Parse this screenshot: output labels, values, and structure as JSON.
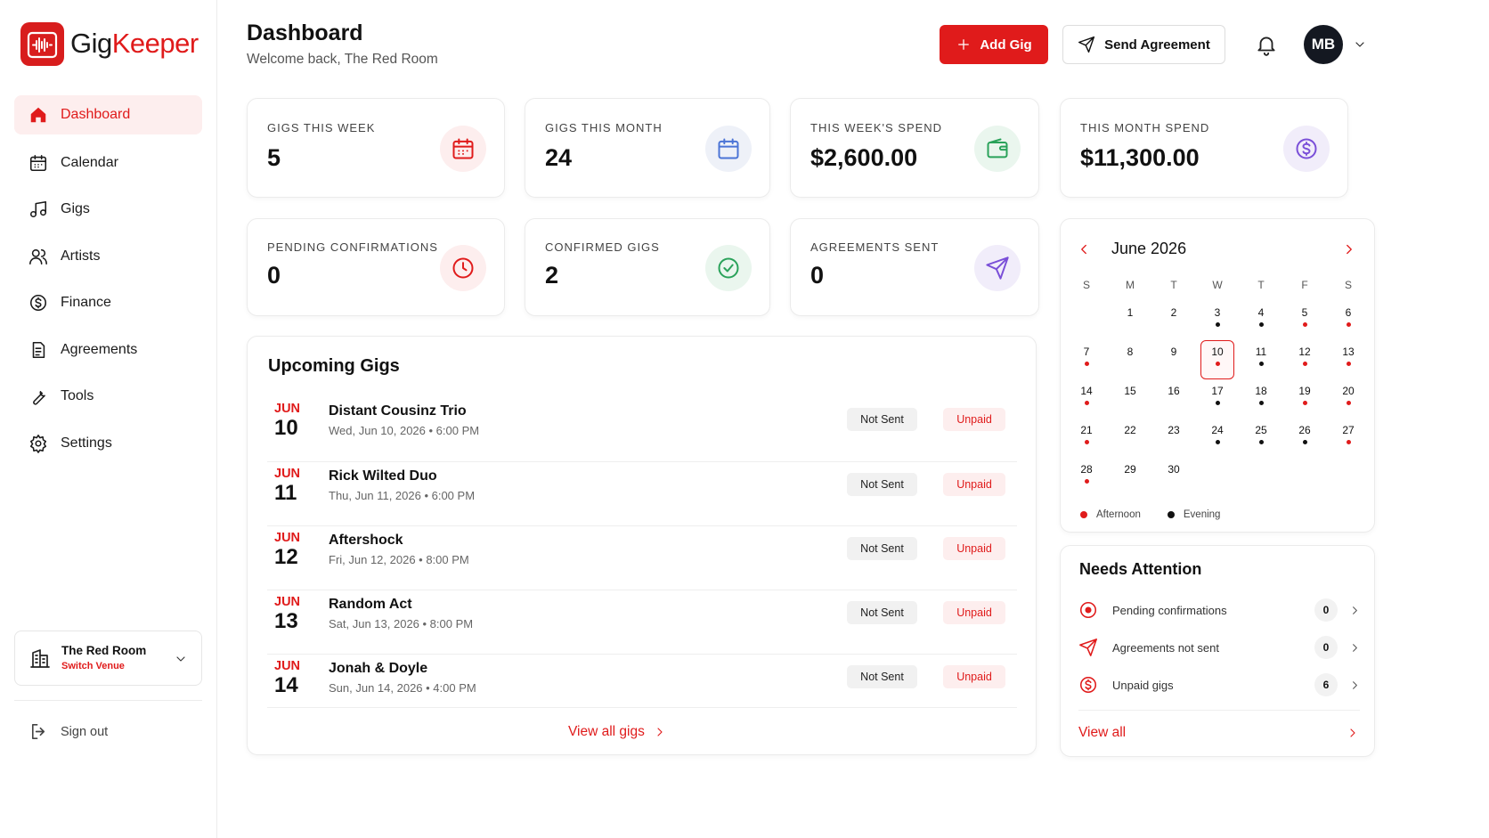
{
  "brand": {
    "name_a": "Gig",
    "name_b": "Keeper"
  },
  "nav": [
    "Dashboard",
    "Calendar",
    "Gigs",
    "Artists",
    "Finance",
    "Agreements",
    "Tools",
    "Settings"
  ],
  "venue": {
    "name": "The Red Room",
    "action": "Switch Venue"
  },
  "sign_out": "Sign out",
  "header": {
    "title": "Dashboard",
    "subtitle": "Welcome back, The Red Room",
    "add_button": "Add Gig",
    "send_button": "Send Agreement",
    "avatar": "MB"
  },
  "stats": [
    {
      "label": "GIGS THIS WEEK",
      "value": 5
    },
    {
      "label": "GIGS THIS MONTH",
      "value": 24
    },
    {
      "label": "THIS WEEK'S SPEND",
      "value": "$2,600.00"
    },
    {
      "label": "THIS MONTH SPEND",
      "value": "$11,300.00"
    },
    {
      "label": "PENDING CONFIRMATIONS",
      "value": 0
    },
    {
      "label": "CONFIRMED GIGS",
      "value": 2
    },
    {
      "label": "AGREEMENTS SENT",
      "value": 0
    }
  ],
  "upcoming": {
    "title": "Upcoming Gigs",
    "rows": [
      {
        "month": "JUN",
        "day": 10,
        "name": "Distant Cousinz Trio",
        "when": "Wed, Jun 10, 2026 • 6:00 PM",
        "agreement": "Not Sent",
        "payment": "Unpaid"
      },
      {
        "month": "JUN",
        "day": 11,
        "name": "Rick Wilted Duo",
        "when": "Thu, Jun 11, 2026 • 6:00 PM",
        "agreement": "Not Sent",
        "payment": "Unpaid"
      },
      {
        "month": "JUN",
        "day": 12,
        "name": "Aftershock",
        "when": "Fri, Jun 12, 2026 • 8:00 PM",
        "agreement": "Not Sent",
        "payment": "Unpaid"
      },
      {
        "month": "JUN",
        "day": 13,
        "name": "Random Act",
        "when": "Sat, Jun 13, 2026 • 8:00 PM",
        "agreement": "Not Sent",
        "payment": "Unpaid"
      },
      {
        "month": "JUN",
        "day": 14,
        "name": "Jonah & Doyle",
        "when": "Sun, Jun 14, 2026 • 4:00 PM",
        "agreement": "Not Sent",
        "payment": "Unpaid"
      }
    ],
    "footer": "View all gigs"
  },
  "calendar": {
    "title": "June 2026",
    "weekdays": [
      "S",
      "M",
      "T",
      "W",
      "T",
      "F",
      "S"
    ],
    "days": [
      null,
      1,
      2,
      3,
      4,
      5,
      6,
      7,
      8,
      9,
      10,
      11,
      12,
      13,
      14,
      15,
      16,
      17,
      18,
      19,
      20,
      21,
      22,
      23,
      24,
      25,
      26,
      27,
      28,
      29,
      30
    ],
    "selected": 10,
    "afternoon_days": [
      5,
      6,
      7,
      10,
      12,
      13,
      14,
      19,
      20,
      21,
      27,
      28
    ],
    "evening_days": [
      3,
      4,
      11,
      17,
      18,
      24,
      25,
      26
    ],
    "legend": {
      "afternoon": "Afternoon",
      "evening": "Evening"
    }
  },
  "attention": {
    "title": "Needs Attention",
    "items": [
      {
        "label": "Pending confirmations",
        "count": 0
      },
      {
        "label": "Agreements not sent",
        "count": 0
      },
      {
        "label": "Unpaid gigs",
        "count": 6
      }
    ],
    "footer": "View all"
  }
}
